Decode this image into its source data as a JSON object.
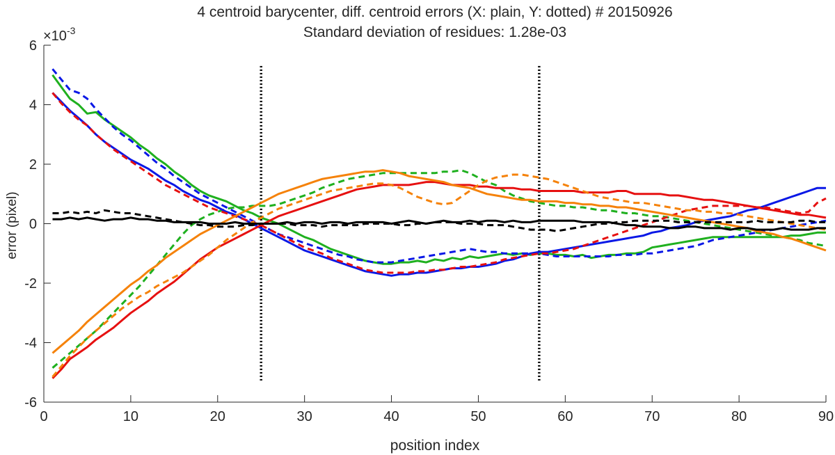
{
  "chart_data": {
    "type": "line",
    "title": "4 centroid barycenter, diff. centroid errors (X: plain, Y: dotted) # 20150926",
    "subtitle": "Standard deviation of residues: 1.28e-03",
    "xlabel": "position index",
    "ylabel": "error (pixel)",
    "y_exponent_label": "×10",
    "y_exponent_power": "-3",
    "xlim": [
      0,
      90
    ],
    "ylim": [
      -6,
      6
    ],
    "xticks": [
      0,
      10,
      20,
      30,
      40,
      50,
      60,
      70,
      80,
      90
    ],
    "yticks": [
      -6,
      -4,
      -2,
      0,
      2,
      4,
      6
    ],
    "grid": false,
    "vertical_markers": [
      25,
      57
    ],
    "x_start": 1,
    "x_step": 1,
    "series": [
      {
        "name": "green X",
        "color": "#1fb01f",
        "style": "solid",
        "values": [
          5.0,
          4.6,
          4.2,
          4.0,
          3.7,
          3.75,
          3.5,
          3.3,
          3.1,
          2.9,
          2.65,
          2.45,
          2.2,
          2.0,
          1.75,
          1.55,
          1.3,
          1.1,
          0.95,
          0.85,
          0.75,
          0.6,
          0.45,
          0.35,
          0.2,
          0.1,
          0.0,
          -0.15,
          -0.3,
          -0.45,
          -0.55,
          -0.7,
          -0.85,
          -0.95,
          -1.05,
          -1.15,
          -1.25,
          -1.3,
          -1.35,
          -1.35,
          -1.3,
          -1.3,
          -1.25,
          -1.3,
          -1.2,
          -1.25,
          -1.15,
          -1.2,
          -1.1,
          -1.15,
          -1.1,
          -1.05,
          -1.0,
          -1.05,
          -1.0,
          -1.05,
          -1.0,
          -1.0,
          -1.05,
          -1.05,
          -1.1,
          -1.05,
          -1.15,
          -1.1,
          -1.05,
          -1.05,
          -1.0,
          -1.0,
          -0.95,
          -0.8,
          -0.75,
          -0.7,
          -0.65,
          -0.6,
          -0.55,
          -0.5,
          -0.45,
          -0.45,
          -0.45,
          -0.45,
          -0.45,
          -0.45,
          -0.45,
          -0.45,
          -0.45,
          -0.4,
          -0.4,
          -0.35,
          -0.3,
          -0.3
        ]
      },
      {
        "name": "green Y",
        "color": "#1fb01f",
        "style": "dashed",
        "values": [
          -4.85,
          -4.6,
          -4.35,
          -4.1,
          -3.85,
          -3.6,
          -3.3,
          -3.0,
          -2.7,
          -2.4,
          -2.1,
          -1.75,
          -1.4,
          -1.05,
          -0.7,
          -0.35,
          -0.05,
          0.15,
          0.3,
          0.4,
          0.5,
          0.55,
          0.55,
          0.6,
          0.6,
          0.6,
          0.65,
          0.75,
          0.85,
          0.95,
          1.05,
          1.2,
          1.3,
          1.4,
          1.5,
          1.55,
          1.6,
          1.65,
          1.7,
          1.7,
          1.7,
          1.7,
          1.7,
          1.7,
          1.7,
          1.75,
          1.75,
          1.8,
          1.7,
          1.55,
          1.4,
          1.3,
          1.1,
          0.95,
          0.85,
          0.75,
          0.7,
          0.65,
          0.6,
          0.6,
          0.55,
          0.55,
          0.5,
          0.45,
          0.45,
          0.4,
          0.35,
          0.35,
          0.3,
          0.25,
          0.25,
          0.2,
          0.15,
          0.1,
          0.05,
          0.0,
          -0.05,
          -0.1,
          -0.15,
          -0.2,
          -0.25,
          -0.3,
          -0.35,
          -0.4,
          -0.45,
          -0.5,
          -0.55,
          -0.65,
          -0.7,
          -0.75
        ]
      },
      {
        "name": "blue X",
        "color": "#0a18e6",
        "style": "solid",
        "values": [
          4.4,
          4.1,
          3.8,
          3.55,
          3.3,
          3.0,
          2.75,
          2.55,
          2.35,
          2.15,
          2.0,
          1.85,
          1.65,
          1.45,
          1.3,
          1.1,
          0.95,
          0.8,
          0.7,
          0.55,
          0.4,
          0.3,
          0.15,
          0.0,
          -0.15,
          -0.3,
          -0.45,
          -0.6,
          -0.75,
          -0.9,
          -1.0,
          -1.1,
          -1.2,
          -1.3,
          -1.4,
          -1.5,
          -1.6,
          -1.65,
          -1.7,
          -1.75,
          -1.7,
          -1.7,
          -1.65,
          -1.65,
          -1.6,
          -1.55,
          -1.5,
          -1.5,
          -1.45,
          -1.45,
          -1.4,
          -1.35,
          -1.25,
          -1.2,
          -1.1,
          -1.0,
          -0.95,
          -0.95,
          -0.9,
          -0.85,
          -0.8,
          -0.75,
          -0.7,
          -0.65,
          -0.6,
          -0.55,
          -0.5,
          -0.45,
          -0.4,
          -0.3,
          -0.25,
          -0.15,
          -0.1,
          -0.05,
          0.05,
          0.1,
          0.15,
          0.2,
          0.25,
          0.35,
          0.45,
          0.5,
          0.6,
          0.7,
          0.8,
          0.9,
          1.0,
          1.1,
          1.2,
          1.2
        ]
      },
      {
        "name": "blue Y",
        "color": "#0a18e6",
        "style": "dashed",
        "values": [
          5.2,
          4.85,
          4.5,
          4.4,
          4.2,
          3.85,
          3.55,
          3.25,
          3.0,
          2.8,
          2.55,
          2.3,
          2.05,
          1.85,
          1.6,
          1.4,
          1.2,
          1.0,
          0.85,
          0.7,
          0.55,
          0.4,
          0.25,
          0.1,
          -0.05,
          -0.2,
          -0.35,
          -0.45,
          -0.55,
          -0.65,
          -0.75,
          -0.85,
          -0.95,
          -1.05,
          -1.1,
          -1.2,
          -1.25,
          -1.3,
          -1.3,
          -1.3,
          -1.25,
          -1.2,
          -1.15,
          -1.1,
          -1.05,
          -1.0,
          -0.95,
          -0.9,
          -0.85,
          -0.9,
          -0.95,
          -0.95,
          -1.0,
          -1.0,
          -1.0,
          -1.0,
          -1.0,
          -1.05,
          -1.1,
          -1.1,
          -1.1,
          -1.1,
          -1.1,
          -1.1,
          -1.1,
          -1.05,
          -1.05,
          -1.05,
          -1.0,
          -1.0,
          -0.95,
          -0.9,
          -0.85,
          -0.8,
          -0.75,
          -0.65,
          -0.55,
          -0.5,
          -0.45,
          -0.4,
          -0.35,
          -0.3,
          -0.25,
          -0.2,
          -0.15,
          -0.1,
          -0.05,
          0.0,
          0.05,
          0.1
        ]
      },
      {
        "name": "red X",
        "color": "#e61010",
        "style": "solid",
        "values": [
          -5.2,
          -4.9,
          -4.55,
          -4.35,
          -4.15,
          -3.9,
          -3.7,
          -3.5,
          -3.25,
          -3.0,
          -2.8,
          -2.6,
          -2.35,
          -2.15,
          -1.95,
          -1.7,
          -1.45,
          -1.2,
          -1.0,
          -0.8,
          -0.65,
          -0.5,
          -0.35,
          -0.2,
          -0.05,
          0.1,
          0.25,
          0.35,
          0.45,
          0.55,
          0.65,
          0.75,
          0.85,
          0.95,
          1.05,
          1.15,
          1.2,
          1.25,
          1.3,
          1.3,
          1.3,
          1.3,
          1.35,
          1.4,
          1.4,
          1.35,
          1.3,
          1.3,
          1.3,
          1.25,
          1.25,
          1.2,
          1.2,
          1.2,
          1.15,
          1.15,
          1.1,
          1.1,
          1.1,
          1.1,
          1.1,
          1.05,
          1.05,
          1.05,
          1.05,
          1.1,
          1.1,
          1.0,
          1.0,
          1.0,
          1.0,
          0.95,
          0.95,
          0.9,
          0.85,
          0.8,
          0.8,
          0.75,
          0.7,
          0.65,
          0.6,
          0.55,
          0.5,
          0.45,
          0.4,
          0.35,
          0.3,
          0.3,
          0.25,
          0.2
        ]
      },
      {
        "name": "red Y",
        "color": "#e61010",
        "style": "dashed",
        "values": [
          4.4,
          4.05,
          3.75,
          3.5,
          3.3,
          3.0,
          2.75,
          2.5,
          2.3,
          2.1,
          1.9,
          1.7,
          1.5,
          1.3,
          1.15,
          1.0,
          0.85,
          0.7,
          0.55,
          0.45,
          0.35,
          0.25,
          0.15,
          0.05,
          -0.05,
          -0.2,
          -0.35,
          -0.5,
          -0.65,
          -0.8,
          -0.9,
          -1.0,
          -1.15,
          -1.25,
          -1.35,
          -1.45,
          -1.55,
          -1.6,
          -1.65,
          -1.65,
          -1.65,
          -1.65,
          -1.6,
          -1.6,
          -1.55,
          -1.55,
          -1.5,
          -1.45,
          -1.45,
          -1.4,
          -1.35,
          -1.3,
          -1.2,
          -1.15,
          -1.1,
          -1.05,
          -1.0,
          -1.0,
          -0.95,
          -0.9,
          -0.85,
          -0.75,
          -0.65,
          -0.55,
          -0.45,
          -0.35,
          -0.25,
          -0.15,
          -0.05,
          0.05,
          0.15,
          0.25,
          0.35,
          0.45,
          0.5,
          0.55,
          0.6,
          0.6,
          0.6,
          0.6,
          0.6,
          0.55,
          0.55,
          0.5,
          0.45,
          0.4,
          0.35,
          0.4,
          0.7,
          0.85
        ]
      },
      {
        "name": "orange X",
        "color": "#f5820a",
        "style": "solid",
        "values": [
          -4.35,
          -4.1,
          -3.85,
          -3.6,
          -3.3,
          -3.05,
          -2.8,
          -2.55,
          -2.3,
          -2.05,
          -1.85,
          -1.6,
          -1.4,
          -1.15,
          -0.95,
          -0.75,
          -0.55,
          -0.35,
          -0.2,
          -0.05,
          0.1,
          0.25,
          0.4,
          0.55,
          0.7,
          0.85,
          1.0,
          1.1,
          1.2,
          1.3,
          1.4,
          1.5,
          1.55,
          1.6,
          1.65,
          1.7,
          1.75,
          1.75,
          1.8,
          1.75,
          1.7,
          1.6,
          1.55,
          1.5,
          1.45,
          1.4,
          1.3,
          1.25,
          1.2,
          1.1,
          1.0,
          0.95,
          0.9,
          0.85,
          0.8,
          0.8,
          0.75,
          0.75,
          0.75,
          0.7,
          0.7,
          0.65,
          0.65,
          0.6,
          0.6,
          0.55,
          0.55,
          0.5,
          0.45,
          0.4,
          0.35,
          0.3,
          0.25,
          0.2,
          0.15,
          0.1,
          0.05,
          0.0,
          -0.05,
          -0.1,
          -0.15,
          -0.25,
          -0.3,
          -0.35,
          -0.45,
          -0.5,
          -0.6,
          -0.7,
          -0.8,
          -0.9
        ]
      },
      {
        "name": "orange Y",
        "color": "#f5820a",
        "style": "dashed",
        "values": [
          -5.15,
          -4.8,
          -4.45,
          -4.15,
          -3.85,
          -3.6,
          -3.35,
          -3.1,
          -2.85,
          -2.65,
          -2.45,
          -2.3,
          -2.1,
          -1.95,
          -1.8,
          -1.65,
          -1.45,
          -1.25,
          -1.05,
          -0.8,
          -0.55,
          -0.35,
          -0.15,
          0.05,
          0.2,
          0.35,
          0.5,
          0.6,
          0.7,
          0.8,
          0.9,
          1.0,
          1.1,
          1.15,
          1.2,
          1.25,
          1.3,
          1.35,
          1.35,
          1.3,
          1.2,
          1.05,
          0.9,
          0.8,
          0.7,
          0.65,
          0.7,
          0.9,
          1.1,
          1.3,
          1.45,
          1.55,
          1.6,
          1.65,
          1.65,
          1.6,
          1.55,
          1.5,
          1.4,
          1.3,
          1.2,
          1.1,
          1.0,
          0.9,
          0.85,
          0.8,
          0.75,
          0.7,
          0.7,
          0.65,
          0.6,
          0.55,
          0.5,
          0.45,
          0.45,
          0.4,
          0.4,
          0.35,
          0.35,
          0.3,
          0.25,
          0.2,
          0.15,
          0.1,
          0.05,
          0.0,
          -0.05,
          -0.1,
          -0.15,
          -0.2
        ]
      },
      {
        "name": "black X",
        "color": "#000000",
        "style": "solid",
        "values": [
          0.15,
          0.15,
          0.2,
          0.15,
          0.2,
          0.15,
          0.1,
          0.15,
          0.15,
          0.2,
          0.15,
          0.15,
          0.1,
          0.1,
          0.05,
          0.05,
          0.05,
          0.05,
          0.0,
          0.0,
          0.0,
          0.05,
          0.0,
          0.0,
          0.0,
          0.0,
          0.0,
          0.05,
          0.0,
          0.05,
          0.05,
          0.0,
          0.05,
          0.05,
          0.0,
          0.05,
          0.05,
          0.05,
          0.05,
          0.0,
          0.05,
          0.1,
          0.05,
          0.0,
          0.05,
          0.1,
          0.05,
          0.05,
          0.1,
          0.05,
          0.1,
          0.1,
          0.05,
          0.1,
          0.05,
          0.05,
          0.1,
          0.1,
          0.1,
          0.1,
          0.1,
          0.05,
          0.05,
          0.05,
          0.05,
          0.0,
          -0.05,
          -0.05,
          -0.1,
          -0.1,
          -0.1,
          -0.15,
          -0.15,
          -0.1,
          -0.1,
          -0.15,
          -0.15,
          -0.15,
          -0.2,
          -0.15,
          -0.15,
          -0.2,
          -0.2,
          -0.2,
          -0.15,
          -0.2,
          -0.2,
          -0.2,
          -0.15,
          -0.15
        ]
      },
      {
        "name": "black Y",
        "color": "#000000",
        "style": "dashed",
        "values": [
          0.35,
          0.35,
          0.4,
          0.35,
          0.4,
          0.35,
          0.45,
          0.4,
          0.35,
          0.35,
          0.3,
          0.25,
          0.2,
          0.15,
          0.1,
          0.05,
          0.0,
          -0.05,
          -0.05,
          -0.1,
          -0.1,
          -0.1,
          -0.05,
          -0.05,
          0.0,
          0.0,
          0.0,
          0.0,
          -0.05,
          -0.05,
          -0.05,
          -0.1,
          -0.05,
          -0.05,
          -0.05,
          -0.05,
          0.0,
          0.0,
          0.0,
          0.0,
          -0.05,
          -0.05,
          0.0,
          0.0,
          0.05,
          0.05,
          0.05,
          0.0,
          0.0,
          0.0,
          -0.05,
          -0.05,
          -0.05,
          -0.1,
          -0.15,
          -0.2,
          -0.2,
          -0.2,
          -0.25,
          -0.2,
          -0.15,
          -0.1,
          -0.05,
          0.0,
          0.0,
          0.05,
          0.05,
          0.1,
          0.1,
          0.1,
          0.1,
          0.1,
          0.05,
          0.05,
          0.05,
          0.05,
          0.05,
          0.05,
          0.05,
          0.05,
          0.05,
          0.1,
          0.05,
          0.05,
          0.05,
          0.05,
          0.1,
          0.1,
          0.05,
          0.05
        ]
      }
    ]
  }
}
